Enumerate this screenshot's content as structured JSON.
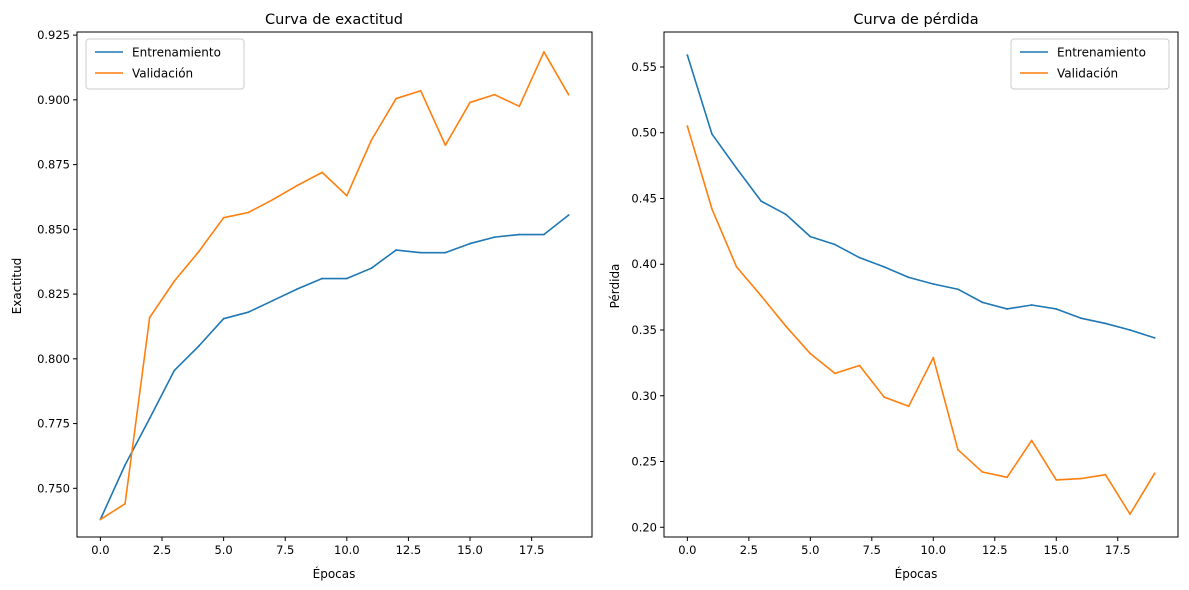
{
  "figure": {
    "colors": {
      "train": "#1f77b4",
      "val": "#ff7f0e",
      "axes": "#000000",
      "background": "#ffffff"
    }
  },
  "chart_data": [
    {
      "type": "line",
      "title": "Curva de exactitud",
      "xlabel": "Épocas",
      "ylabel": "Exactitud",
      "xlim": [
        -0.95,
        19.95
      ],
      "ylim": [
        0.7312,
        0.9262
      ],
      "xticks": [
        0,
        2.5,
        5,
        7.5,
        10,
        12.5,
        15,
        17.5
      ],
      "xtick_labels": [
        "0.0",
        "2.5",
        "5.0",
        "7.5",
        "10.0",
        "12.5",
        "15.0",
        "17.5"
      ],
      "yticks": [
        0.75,
        0.775,
        0.8,
        0.825,
        0.85,
        0.875,
        0.9,
        0.925
      ],
      "ytick_labels": [
        "0.750",
        "0.775",
        "0.800",
        "0.825",
        "0.850",
        "0.875",
        "0.900",
        "0.925"
      ],
      "grid": false,
      "legend_position": "top-left",
      "x": [
        0,
        1,
        2,
        3,
        4,
        5,
        6,
        7,
        8,
        9,
        10,
        11,
        12,
        13,
        14,
        15,
        16,
        17,
        18,
        19
      ],
      "series": [
        {
          "name": "Entrenamiento",
          "color": "#1f77b4",
          "values": [
            0.738,
            0.759,
            0.777,
            0.7955,
            0.805,
            0.8155,
            0.818,
            0.8225,
            0.827,
            0.831,
            0.831,
            0.835,
            0.842,
            0.841,
            0.841,
            0.8445,
            0.847,
            0.848,
            0.848,
            0.8555
          ]
        },
        {
          "name": "Validación",
          "color": "#ff7f0e",
          "values": [
            0.738,
            0.744,
            0.816,
            0.83,
            0.8415,
            0.8545,
            0.8565,
            0.8615,
            0.867,
            0.872,
            0.863,
            0.8845,
            0.9005,
            0.9035,
            0.8825,
            0.899,
            0.902,
            0.8975,
            0.9185,
            0.902
          ]
        }
      ]
    },
    {
      "type": "line",
      "title": "Curva de pérdida",
      "xlabel": "Épocas",
      "ylabel": "Pérdida",
      "xlim": [
        -0.95,
        19.95
      ],
      "ylim": [
        0.1926,
        0.5766
      ],
      "xticks": [
        0,
        2.5,
        5,
        7.5,
        10,
        12.5,
        15,
        17.5
      ],
      "xtick_labels": [
        "0.0",
        "2.5",
        "5.0",
        "7.5",
        "10.0",
        "12.5",
        "15.0",
        "17.5"
      ],
      "yticks": [
        0.2,
        0.25,
        0.3,
        0.35,
        0.4,
        0.45,
        0.5,
        0.55
      ],
      "ytick_labels": [
        "0.20",
        "0.25",
        "0.30",
        "0.35",
        "0.40",
        "0.45",
        "0.50",
        "0.55"
      ],
      "grid": false,
      "legend_position": "top-right",
      "x": [
        0,
        1,
        2,
        3,
        4,
        5,
        6,
        7,
        8,
        9,
        10,
        11,
        12,
        13,
        14,
        15,
        16,
        17,
        18,
        19
      ],
      "series": [
        {
          "name": "Entrenamiento",
          "color": "#1f77b4",
          "values": [
            0.559,
            0.499,
            0.473,
            0.448,
            0.438,
            0.421,
            0.415,
            0.405,
            0.398,
            0.39,
            0.385,
            0.381,
            0.371,
            0.366,
            0.369,
            0.366,
            0.359,
            0.355,
            0.35,
            0.344
          ]
        },
        {
          "name": "Validación",
          "color": "#ff7f0e",
          "values": [
            0.505,
            0.442,
            0.398,
            0.376,
            0.353,
            0.332,
            0.317,
            0.323,
            0.299,
            0.292,
            0.329,
            0.259,
            0.242,
            0.238,
            0.266,
            0.236,
            0.237,
            0.24,
            0.21,
            0.241
          ]
        }
      ]
    }
  ]
}
